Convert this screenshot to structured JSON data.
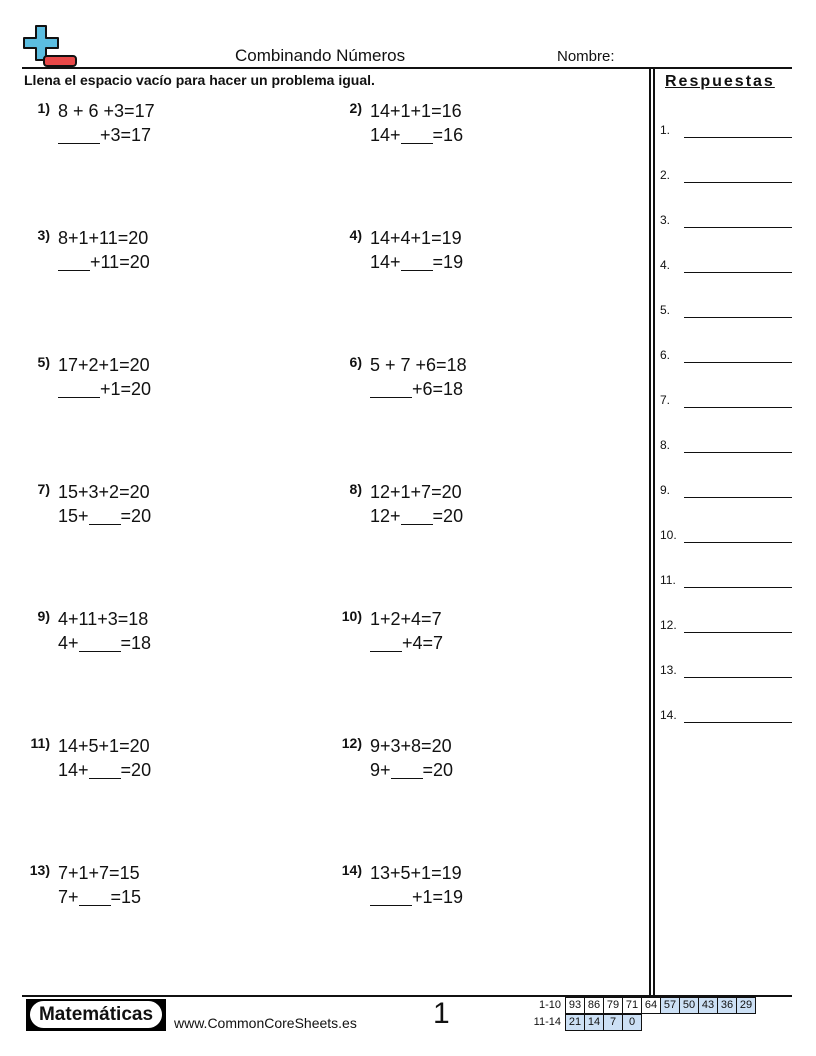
{
  "header": {
    "title": "Combinando Números",
    "name_label": "Nombre:",
    "instructions": "Llena el espacio vacío para hacer un problema igual."
  },
  "logo_colors": {
    "plus": "#5bbde0",
    "minus": "#e84848"
  },
  "answers": {
    "title": "Respuestas",
    "labels": [
      "1.",
      "2.",
      "3.",
      "4.",
      "5.",
      "6.",
      "7.",
      "8.",
      "9.",
      "10.",
      "11.",
      "12.",
      "13.",
      "14."
    ]
  },
  "problems": [
    {
      "num": "1)",
      "line1": "8 + 6 +3=17",
      "before": "",
      "after": "+3=17"
    },
    {
      "num": "2)",
      "line1": "14+1+1=16",
      "before": "14+",
      "after": "=16"
    },
    {
      "num": "3)",
      "line1": "8+1+11=20",
      "before": "",
      "after": "+11=20"
    },
    {
      "num": "4)",
      "line1": "14+4+1=19",
      "before": "14+",
      "after": "=19"
    },
    {
      "num": "5)",
      "line1": "17+2+1=20",
      "before": "",
      "after": "+1=20"
    },
    {
      "num": "6)",
      "line1": "5 + 7 +6=18",
      "before": "",
      "after": "+6=18"
    },
    {
      "num": "7)",
      "line1": "15+3+2=20",
      "before": "15+",
      "after": "=20"
    },
    {
      "num": "8)",
      "line1": "12+1+7=20",
      "before": "12+",
      "after": "=20"
    },
    {
      "num": "9)",
      "line1": "4+11+3=18",
      "before": "4+",
      "after": "=18"
    },
    {
      "num": "10)",
      "line1": "1+2+4=7",
      "before": "",
      "after": "+4=7"
    },
    {
      "num": "11)",
      "line1": "14+5+1=20",
      "before": "14+",
      "after": "=20"
    },
    {
      "num": "12)",
      "line1": "9+3+8=20",
      "before": "9+",
      "after": "=20"
    },
    {
      "num": "13)",
      "line1": "7+1+7=15",
      "before": "7+",
      "after": "=15"
    },
    {
      "num": "14)",
      "line1": "13+5+1=19",
      "before": "",
      "after": "+1=19"
    }
  ],
  "footer": {
    "brand": "Matemáticas",
    "site": "www.CommonCoreSheets.es",
    "page": "1",
    "score_rows": [
      {
        "label": "1-10",
        "values": [
          "93",
          "86",
          "79",
          "71",
          "64",
          "57",
          "50",
          "43",
          "36",
          "29"
        ]
      },
      {
        "label": "11-14",
        "values": [
          "21",
          "14",
          "7",
          "0"
        ]
      }
    ],
    "score_highlight": "#cce0f5"
  }
}
